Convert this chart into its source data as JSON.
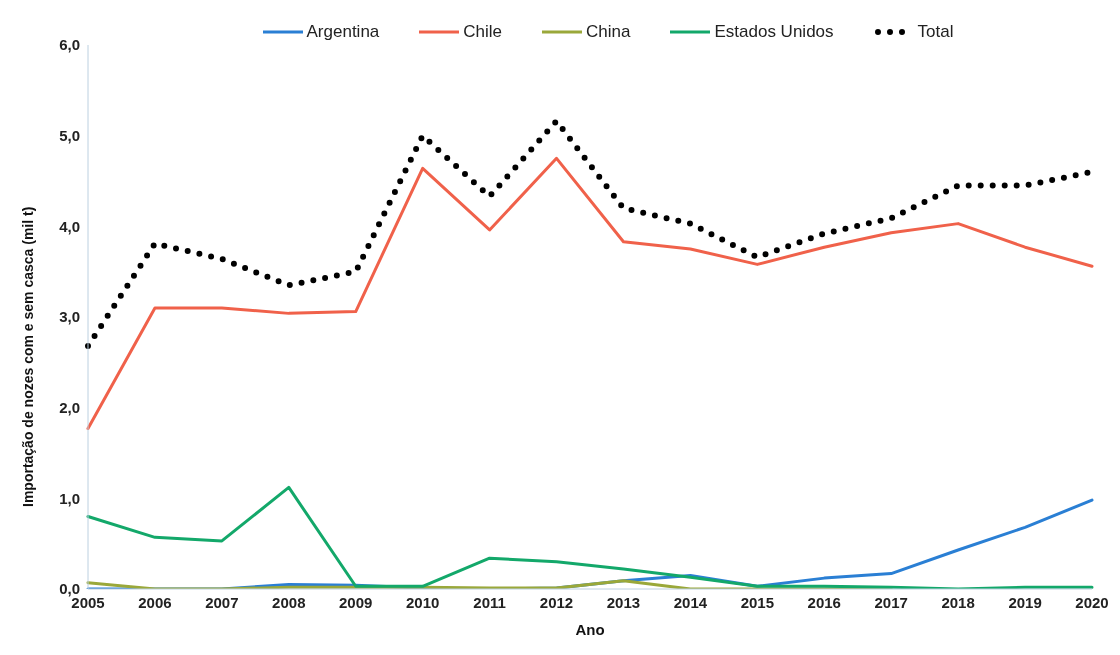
{
  "chart_data": {
    "type": "line",
    "xlabel": "Ano",
    "ylabel": "Importação de nozes com e sem casca (mil t)",
    "categories": [
      "2005",
      "2006",
      "2007",
      "2008",
      "2009",
      "2010",
      "2011",
      "2012",
      "2013",
      "2014",
      "2015",
      "2016",
      "2017",
      "2018",
      "2019",
      "2020"
    ],
    "ylim": [
      0,
      6
    ],
    "yticks": [
      {
        "value": 0,
        "label": "0,0"
      },
      {
        "value": 1,
        "label": "1,0"
      },
      {
        "value": 2,
        "label": "2,0"
      },
      {
        "value": 3,
        "label": "3,0"
      },
      {
        "value": 4,
        "label": "4,0"
      },
      {
        "value": 5,
        "label": "5,0"
      },
      {
        "value": 6,
        "label": "6,0"
      }
    ],
    "grid": false,
    "legend": "top",
    "marker": "none",
    "series": [
      {
        "name": "Argentina",
        "color": "#2a7fd4",
        "line_style": "solid",
        "values": [
          0,
          0,
          0,
          0.05,
          0.04,
          0.01,
          0,
          0.01,
          0.09,
          0.15,
          0.03,
          0.12,
          0.17,
          0.43,
          0.68,
          0.98
        ]
      },
      {
        "name": "Chile",
        "color": "#f0614a",
        "line_style": "solid",
        "values": [
          1.77,
          3.1,
          3.1,
          3.04,
          3.06,
          4.64,
          3.96,
          4.75,
          3.83,
          3.75,
          3.58,
          3.77,
          3.93,
          4.03,
          3.77,
          3.56
        ]
      },
      {
        "name": "China",
        "color": "#9aa83a",
        "line_style": "solid",
        "values": [
          0.07,
          0,
          0,
          0.02,
          0.02,
          0.02,
          0.01,
          0.01,
          0.09,
          0,
          0,
          0,
          0,
          null,
          null,
          null
        ]
      },
      {
        "name": "Estados Unidos",
        "color": "#13a86a",
        "line_style": "solid",
        "values": [
          0.8,
          0.57,
          0.53,
          1.12,
          0.03,
          0.03,
          0.34,
          0.3,
          0.22,
          0.13,
          0.03,
          0.03,
          0.02,
          0,
          0.02,
          0.02
        ]
      },
      {
        "name": "Total",
        "color": "#000000",
        "line_style": "dotted",
        "values": [
          2.68,
          3.81,
          3.64,
          3.35,
          3.5,
          5.0,
          4.33,
          5.16,
          4.2,
          4.03,
          3.66,
          3.92,
          4.09,
          4.45,
          4.45,
          4.6
        ]
      }
    ]
  }
}
